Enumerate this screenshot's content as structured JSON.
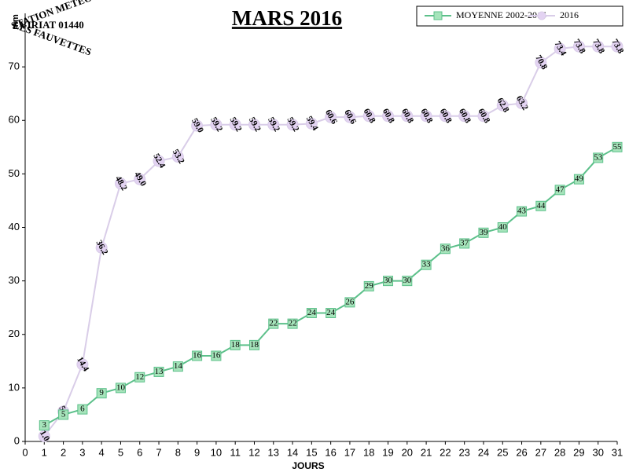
{
  "chart_data": {
    "type": "line",
    "title": "MARS 2016",
    "logo": [
      "STATION METEO",
      "VIRIAT 01440",
      "LES FAUVETTES"
    ],
    "ylabel": "mm",
    "xlabel": "JOURS",
    "x": [
      1,
      2,
      3,
      4,
      5,
      6,
      7,
      8,
      9,
      10,
      11,
      12,
      13,
      14,
      15,
      16,
      17,
      18,
      19,
      20,
      21,
      22,
      23,
      24,
      25,
      26,
      27,
      28,
      29,
      30,
      31
    ],
    "series": [
      {
        "name": "MOYENNE 2002-2015",
        "color": "#5cc08a",
        "marker": "square",
        "marker_color": "#a6e4bb",
        "values": [
          3,
          5,
          6,
          9,
          10,
          12,
          13,
          14,
          16,
          16,
          18,
          18,
          22,
          22,
          24,
          24,
          26,
          29,
          30,
          30,
          33,
          36,
          37,
          39,
          40,
          43,
          44,
          47,
          49,
          53,
          55
        ]
      },
      {
        "name": "2016",
        "color": "#d9cde8",
        "marker": "circle",
        "marker_color": "#e3d3f2",
        "values": [
          1,
          5.6,
          14.4,
          36.2,
          48.2,
          49,
          52.4,
          53.2,
          59,
          59.2,
          59.2,
          59.2,
          59.2,
          59.2,
          59.4,
          60.6,
          60.6,
          60.8,
          60.8,
          60.8,
          60.8,
          60.8,
          60.8,
          60.8,
          62.8,
          63.2,
          70.8,
          73.4,
          73.8,
          73.8,
          73.8
        ],
        "value_labels": [
          "1.0",
          "5.6",
          "14.4",
          "36.2",
          "48.2",
          "49.0",
          "52.4",
          "53.2",
          "59.0",
          "59.2",
          "59.2",
          "59.2",
          "59.2",
          "59.2",
          "59.4",
          "60.6",
          "60.6",
          "60.8",
          "60.8",
          "60.8",
          "60.8",
          "60.8",
          "60.8",
          "60.8",
          "62.8",
          "63.2",
          "70.8",
          "73.4",
          "73.8",
          "73.8",
          "73.8"
        ]
      }
    ],
    "xlim": [
      0,
      31
    ],
    "xticks": [
      0,
      1,
      2,
      3,
      4,
      5,
      6,
      7,
      8,
      9,
      10,
      11,
      12,
      13,
      14,
      15,
      16,
      17,
      18,
      19,
      20,
      21,
      22,
      23,
      24,
      25,
      26,
      27,
      28,
      29,
      30,
      31
    ],
    "ylim": [
      0,
      80
    ],
    "yticks": [
      0,
      10,
      20,
      30,
      40,
      50,
      60,
      70
    ],
    "legend": "top-right"
  }
}
